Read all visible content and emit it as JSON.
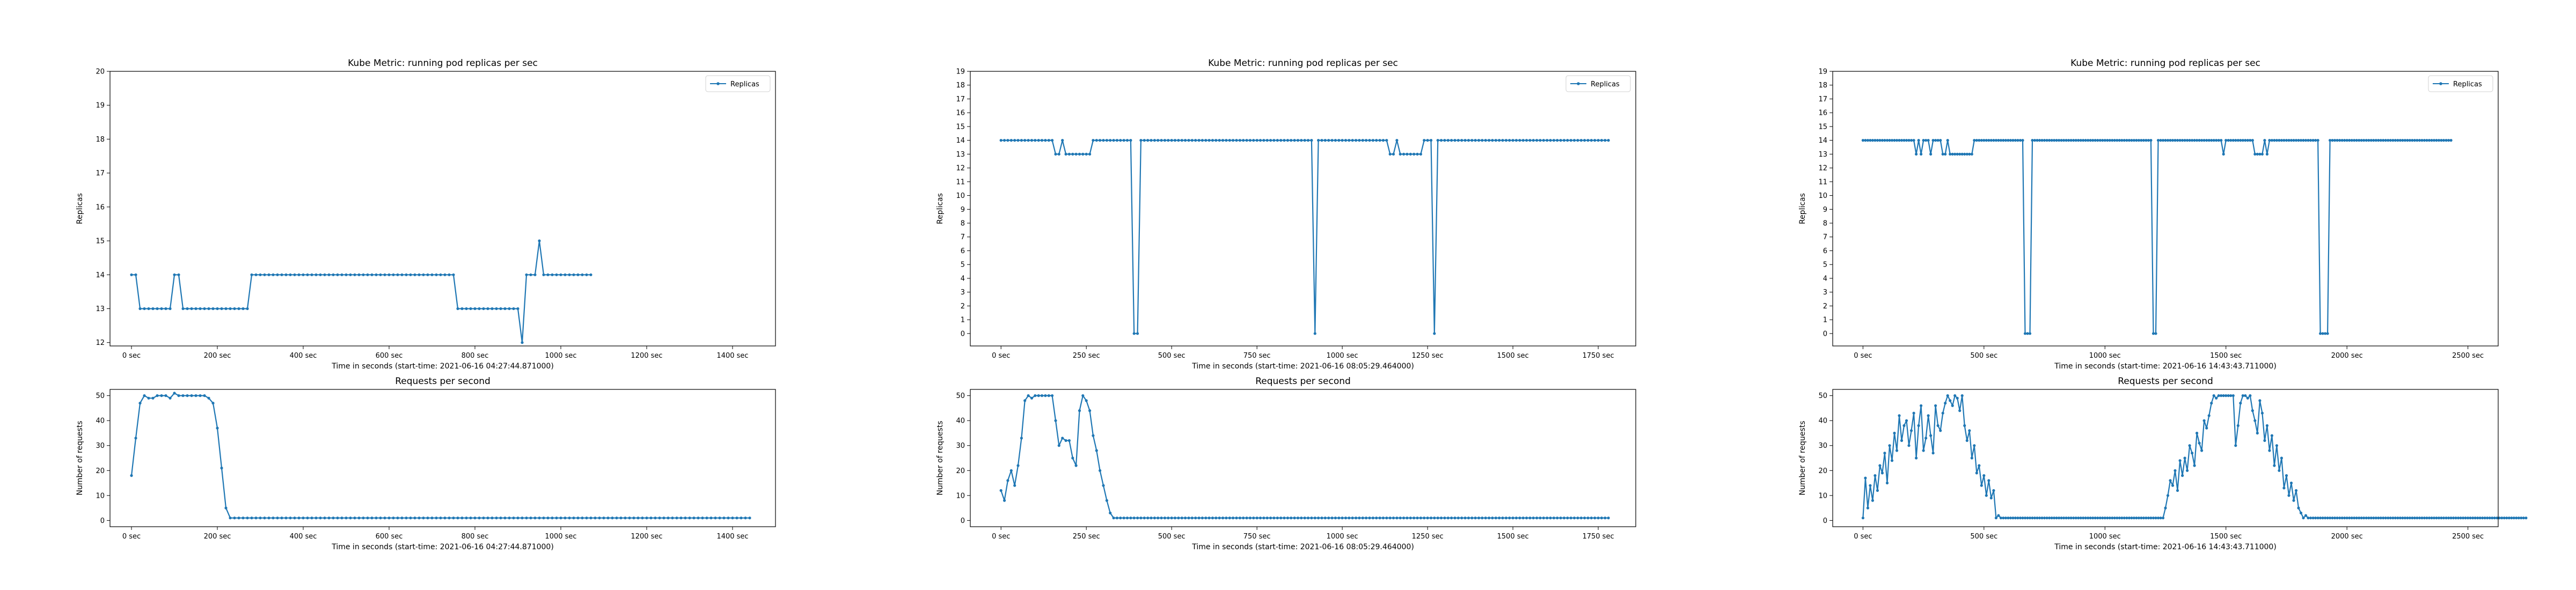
{
  "chart_data": [
    {
      "type": "line",
      "title": "Kube Metric: running pod replicas per sec",
      "xlabel": "Time in seconds (start-time: 2021-06-16 04:27:44.871000)",
      "ylabel": "Replicas",
      "legend": {
        "position": "top-right",
        "entries": [
          "Replicas"
        ]
      },
      "xlim": [
        -50,
        1500
      ],
      "ylim": [
        11.9,
        20
      ],
      "xticks": [
        0,
        200,
        400,
        600,
        800,
        1000,
        1200,
        1400
      ],
      "xtick_labels": [
        "0 sec",
        "200 sec",
        "400 sec",
        "600 sec",
        "800 sec",
        "1000 sec",
        "1200 sec",
        "1400 sec"
      ],
      "yticks": [
        12,
        13,
        14,
        15,
        16,
        17,
        18,
        19,
        20
      ],
      "ytick_labels": [
        "12",
        "13",
        "14",
        "15",
        "16",
        "17",
        "18",
        "19",
        "20"
      ],
      "color": "#1f77b4",
      "series": [
        {
          "name": "Replicas",
          "x_start": 0,
          "x_step": 10,
          "runs": [
            [
              14,
              2
            ],
            [
              13,
              8
            ],
            [
              14,
              2
            ],
            [
              13,
              16
            ],
            [
              14,
              48
            ],
            [
              13,
              15
            ],
            [
              12,
              1
            ],
            [
              14,
              3
            ],
            [
              15,
              1
            ],
            [
              14,
              12
            ]
          ]
        }
      ]
    },
    {
      "type": "line",
      "title": "Kube Metric: running pod replicas per sec",
      "xlabel": "Time in seconds (start-time: 2021-06-16 08:05:29.464000)",
      "ylabel": "Replicas",
      "legend": {
        "position": "top-right",
        "entries": [
          "Replicas"
        ]
      },
      "xlim": [
        -90,
        1860
      ],
      "ylim": [
        -0.9,
        19
      ],
      "xticks": [
        0,
        250,
        500,
        750,
        1000,
        1250,
        1500,
        1750
      ],
      "xtick_labels": [
        "0 sec",
        "250 sec",
        "500 sec",
        "750 sec",
        "1000 sec",
        "1250 sec",
        "1500 sec",
        "1750 sec"
      ],
      "yticks": [
        0,
        1,
        2,
        3,
        4,
        5,
        6,
        7,
        8,
        9,
        10,
        11,
        12,
        13,
        14,
        15,
        16,
        17,
        18,
        19
      ],
      "ytick_labels": [
        "0",
        "1",
        "2",
        "3",
        "4",
        "5",
        "6",
        "7",
        "8",
        "9",
        "10",
        "11",
        "12",
        "13",
        "14",
        "15",
        "16",
        "17",
        "18",
        "19"
      ],
      "color": "#1f77b4",
      "series": [
        {
          "name": "Replicas",
          "x_start": 0,
          "x_step": 10,
          "runs": [
            [
              14,
              16
            ],
            [
              13,
              2
            ],
            [
              14,
              1
            ],
            [
              13,
              8
            ],
            [
              14,
              12
            ],
            [
              0,
              2
            ],
            [
              14,
              51
            ],
            [
              0,
              1
            ],
            [
              14,
              21
            ],
            [
              13,
              2
            ],
            [
              14,
              1
            ],
            [
              13,
              7
            ],
            [
              14,
              3
            ],
            [
              0,
              1
            ],
            [
              14,
              51
            ]
          ]
        }
      ]
    },
    {
      "type": "line",
      "title": "Kube Metric: running pod replicas per sec",
      "xlabel": "Time in seconds (start-time: 2021-06-16 14:43:43.711000)",
      "ylabel": "Replicas",
      "legend": {
        "position": "top-right",
        "entries": [
          "Replicas"
        ]
      },
      "xlim": [
        -125,
        2625
      ],
      "ylim": [
        -0.9,
        19
      ],
      "xticks": [
        0,
        500,
        1000,
        1500,
        2000,
        2500
      ],
      "xtick_labels": [
        "0 sec",
        "500 sec",
        "1000 sec",
        "1500 sec",
        "2000 sec",
        "2500 sec"
      ],
      "yticks": [
        0,
        1,
        2,
        3,
        4,
        5,
        6,
        7,
        8,
        9,
        10,
        11,
        12,
        13,
        14,
        15,
        16,
        17,
        18,
        19
      ],
      "ytick_labels": [
        "0",
        "1",
        "2",
        "3",
        "4",
        "5",
        "6",
        "7",
        "8",
        "9",
        "10",
        "11",
        "12",
        "13",
        "14",
        "15",
        "16",
        "17",
        "18",
        "19"
      ],
      "color": "#1f77b4",
      "series": [
        {
          "name": "Replicas",
          "x_start": 0,
          "x_step": 10,
          "runs": [
            [
              14,
              22
            ],
            [
              13,
              1
            ],
            [
              14,
              1
            ],
            [
              13,
              1
            ],
            [
              14,
              3
            ],
            [
              13,
              1
            ],
            [
              14,
              4
            ],
            [
              13,
              2
            ],
            [
              14,
              1
            ],
            [
              13,
              10
            ],
            [
              14,
              21
            ],
            [
              0,
              3
            ],
            [
              14,
              50
            ],
            [
              0,
              2
            ],
            [
              14,
              27
            ],
            [
              13,
              1
            ],
            [
              14,
              12
            ],
            [
              13,
              4
            ],
            [
              14,
              1
            ],
            [
              13,
              1
            ],
            [
              14,
              21
            ],
            [
              0,
              4
            ],
            [
              14,
              51
            ]
          ]
        }
      ]
    },
    {
      "type": "line",
      "title": "Requests per second",
      "xlabel": "Time in seconds (start-time: 2021-06-16 04:27:44.871000)",
      "ylabel": "Number of requests",
      "xlim": [
        -50,
        1500
      ],
      "ylim": [
        -2.5,
        52.5
      ],
      "xticks": [
        0,
        200,
        400,
        600,
        800,
        1000,
        1200,
        1400
      ],
      "xtick_labels": [
        "0 sec",
        "200 sec",
        "400 sec",
        "600 sec",
        "800 sec",
        "1000 sec",
        "1200 sec",
        "1400 sec"
      ],
      "yticks": [
        0,
        10,
        20,
        30,
        40,
        50
      ],
      "ytick_labels": [
        "0",
        "10",
        "20",
        "30",
        "40",
        "50"
      ],
      "color": "#1f77b4",
      "series": [
        {
          "name": "Requests",
          "x_start": 0,
          "x_step": 10,
          "values": [
            18,
            33,
            47,
            50,
            49,
            49,
            50,
            50,
            50,
            49,
            51,
            50,
            50,
            50,
            50,
            50,
            50,
            50,
            49,
            47,
            37,
            21,
            5,
            1,
            1,
            1,
            1,
            1,
            1,
            1,
            1,
            1,
            1,
            1,
            1,
            1,
            1,
            1,
            1,
            1,
            1,
            1,
            1,
            1,
            1,
            1,
            1,
            1,
            1,
            1,
            1,
            1,
            1,
            1,
            1,
            1,
            1,
            1,
            1,
            1,
            1,
            1,
            1,
            1,
            1,
            1,
            1,
            1,
            1,
            1,
            1,
            1,
            1,
            1,
            1,
            1,
            1,
            1,
            1,
            1,
            1,
            1,
            1,
            1,
            1,
            1,
            1,
            1,
            1,
            1,
            1,
            1,
            1,
            1,
            1,
            1,
            1,
            1,
            1,
            1,
            1,
            1,
            1,
            1,
            1,
            1,
            1,
            1,
            1,
            1,
            1,
            1,
            1,
            1,
            1,
            1,
            1,
            1,
            1,
            1,
            1,
            1,
            1,
            1,
            1,
            1,
            1,
            1,
            1,
            1,
            1,
            1,
            1,
            1,
            1,
            1,
            1,
            1,
            1,
            1,
            1,
            1,
            1,
            1,
            1
          ]
        }
      ]
    },
    {
      "type": "line",
      "title": "Requests per second",
      "xlabel": "Time in seconds (start-time: 2021-06-16 08:05:29.464000)",
      "ylabel": "Number of requests",
      "xlim": [
        -90,
        1860
      ],
      "ylim": [
        -2.5,
        52.5
      ],
      "xticks": [
        0,
        250,
        500,
        750,
        1000,
        1250,
        1500,
        1750
      ],
      "xtick_labels": [
        "0 sec",
        "250 sec",
        "500 sec",
        "750 sec",
        "1000 sec",
        "1250 sec",
        "1500 sec",
        "1750 sec"
      ],
      "yticks": [
        0,
        10,
        20,
        30,
        40,
        50
      ],
      "ytick_labels": [
        "0",
        "10",
        "20",
        "30",
        "40",
        "50"
      ],
      "color": "#1f77b4",
      "series": [
        {
          "name": "Requests",
          "x_start": 0,
          "x_step": 10,
          "values": [
            12,
            8,
            16,
            20,
            14,
            22,
            33,
            48,
            50,
            49,
            50,
            50,
            50,
            50,
            50,
            50,
            40,
            30,
            33,
            32,
            32,
            25,
            22,
            44,
            50,
            48,
            44,
            34,
            28,
            20,
            14,
            8,
            3,
            1,
            1,
            1,
            1,
            1,
            1,
            1,
            1,
            1,
            1,
            1,
            1,
            1,
            1,
            1,
            1,
            1,
            1,
            1,
            1,
            1,
            1,
            1,
            1,
            1,
            1,
            1,
            1,
            1,
            1,
            1,
            1,
            1,
            1,
            1,
            1,
            1,
            1,
            1,
            1,
            1,
            1,
            1,
            1,
            1,
            1,
            1,
            1,
            1,
            1,
            1,
            1,
            1,
            1,
            1,
            1,
            1,
            1,
            1,
            1,
            1,
            1,
            1,
            1,
            1,
            1,
            1,
            1,
            1,
            1,
            1,
            1,
            1,
            1,
            1,
            1,
            1,
            1,
            1,
            1,
            1,
            1,
            1,
            1,
            1,
            1,
            1,
            1,
            1,
            1,
            1,
            1,
            1,
            1,
            1,
            1,
            1,
            1,
            1,
            1,
            1,
            1,
            1,
            1,
            1,
            1,
            1,
            1,
            1,
            1,
            1,
            1,
            1,
            1,
            1,
            1,
            1,
            1,
            1,
            1,
            1,
            1,
            1,
            1,
            1,
            1,
            1,
            1,
            1,
            1,
            1,
            1,
            1,
            1,
            1,
            1,
            1,
            1,
            1,
            1,
            1,
            1,
            1,
            1,
            1,
            1
          ]
        }
      ]
    },
    {
      "type": "line",
      "title": "Requests per second",
      "xlabel": "Time in seconds (start-time: 2021-06-16 14:43:43.711000)",
      "ylabel": "Number of requests",
      "xlim": [
        -125,
        2625
      ],
      "ylim": [
        -2.5,
        52.5
      ],
      "xticks": [
        0,
        500,
        1000,
        1500,
        2000,
        2500
      ],
      "xtick_labels": [
        "0 sec",
        "500 sec",
        "1000 sec",
        "1500 sec",
        "2000 sec",
        "2500 sec"
      ],
      "yticks": [
        0,
        10,
        20,
        30,
        40,
        50
      ],
      "ytick_labels": [
        "0",
        "10",
        "20",
        "30",
        "40",
        "50"
      ],
      "color": "#1f77b4",
      "series": [
        {
          "name": "Requests",
          "x_start": 0,
          "x_step": 10,
          "values": [
            1,
            17,
            5,
            14,
            8,
            18,
            12,
            22,
            19,
            27,
            15,
            30,
            24,
            35,
            28,
            42,
            32,
            38,
            40,
            30,
            36,
            43,
            25,
            38,
            46,
            28,
            33,
            42,
            34,
            27,
            46,
            38,
            36,
            43,
            47,
            50,
            48,
            46,
            50,
            49,
            44,
            50,
            38,
            32,
            36,
            25,
            30,
            19,
            22,
            14,
            18,
            10,
            16,
            9,
            12,
            1,
            2,
            1,
            1,
            1,
            1,
            1,
            1,
            1,
            1,
            1,
            1,
            1,
            1,
            1,
            1,
            1,
            1,
            1,
            1,
            1,
            1,
            1,
            1,
            1,
            1,
            1,
            1,
            1,
            1,
            1,
            1,
            1,
            1,
            1,
            1,
            1,
            1,
            1,
            1,
            1,
            1,
            1,
            1,
            1,
            1,
            1,
            1,
            1,
            1,
            1,
            1,
            1,
            1,
            1,
            1,
            1,
            1,
            1,
            1,
            1,
            1,
            1,
            1,
            1,
            1,
            1,
            1,
            1,
            1,
            5,
            10,
            16,
            14,
            20,
            12,
            24,
            18,
            25,
            20,
            30,
            27,
            22,
            35,
            31,
            28,
            40,
            37,
            42,
            47,
            50,
            49,
            50,
            50,
            50,
            50,
            50,
            50,
            50,
            30,
            38,
            47,
            50,
            50,
            49,
            50,
            44,
            40,
            35,
            48,
            43,
            32,
            38,
            28,
            34,
            22,
            30,
            20,
            25,
            13,
            18,
            10,
            15,
            8,
            12,
            5,
            3,
            1,
            2,
            1,
            1,
            1,
            1,
            1,
            1,
            1,
            1,
            1,
            1,
            1,
            1,
            1,
            1,
            1,
            1,
            1,
            1,
            1,
            1,
            1,
            1,
            1,
            1,
            1,
            1,
            1,
            1,
            1,
            1,
            1,
            1,
            1,
            1,
            1,
            1,
            1,
            1,
            1,
            1,
            1,
            1,
            1,
            1,
            1,
            1,
            1,
            1,
            1,
            1,
            1,
            1,
            1,
            1,
            1,
            1,
            1,
            1,
            1,
            1,
            1,
            1,
            1,
            1,
            1,
            1,
            1,
            1,
            1,
            1,
            1,
            1,
            1,
            1,
            1,
            1,
            1,
            1,
            1,
            1,
            1,
            1,
            1,
            1,
            1,
            1,
            1,
            1,
            1,
            1,
            1
          ]
        }
      ]
    }
  ]
}
